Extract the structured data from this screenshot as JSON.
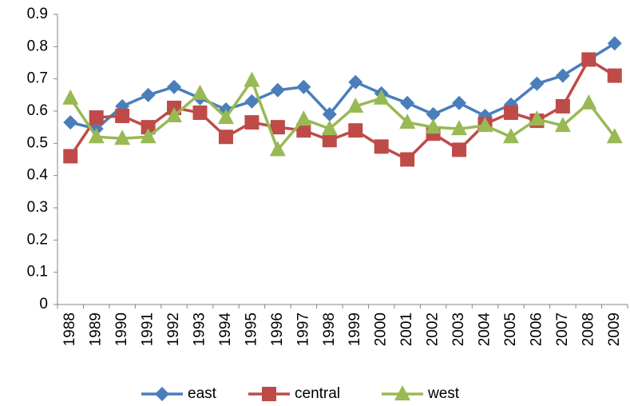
{
  "chart_data": {
    "type": "line",
    "categories": [
      "1988",
      "1989",
      "1990",
      "1991",
      "1992",
      "1993",
      "1994",
      "1995",
      "1996",
      "1997",
      "1998",
      "1999",
      "2000",
      "2001",
      "2002",
      "2003",
      "2004",
      "2005",
      "2006",
      "2007",
      "2008",
      "2009"
    ],
    "series": [
      {
        "name": "east",
        "color": "#4a7ebb",
        "marker": "diamond",
        "values": [
          0.565,
          0.545,
          0.615,
          0.65,
          0.675,
          0.64,
          0.605,
          0.63,
          0.665,
          0.675,
          0.59,
          0.69,
          0.655,
          0.625,
          0.59,
          0.625,
          0.585,
          0.62,
          0.685,
          0.71,
          0.76,
          0.81
        ]
      },
      {
        "name": "central",
        "color": "#be4b48",
        "marker": "square",
        "values": [
          0.46,
          0.58,
          0.585,
          0.55,
          0.61,
          0.595,
          0.52,
          0.565,
          0.55,
          0.54,
          0.51,
          0.54,
          0.49,
          0.45,
          0.53,
          0.48,
          0.56,
          0.595,
          0.57,
          0.615,
          0.76,
          0.71
        ]
      },
      {
        "name": "west",
        "color": "#98b954",
        "marker": "triangle",
        "values": [
          0.64,
          0.52,
          0.515,
          0.52,
          0.585,
          0.655,
          0.58,
          0.695,
          0.48,
          0.575,
          0.545,
          0.615,
          0.64,
          0.565,
          0.55,
          0.545,
          0.555,
          0.52,
          0.575,
          0.555,
          0.625,
          0.52
        ]
      }
    ],
    "ylim": [
      0,
      0.9
    ],
    "yticks": [
      0,
      0.1,
      0.2,
      0.3,
      0.4,
      0.5,
      0.6,
      0.7,
      0.8,
      0.9
    ],
    "grid": false,
    "legend": "bottom"
  }
}
